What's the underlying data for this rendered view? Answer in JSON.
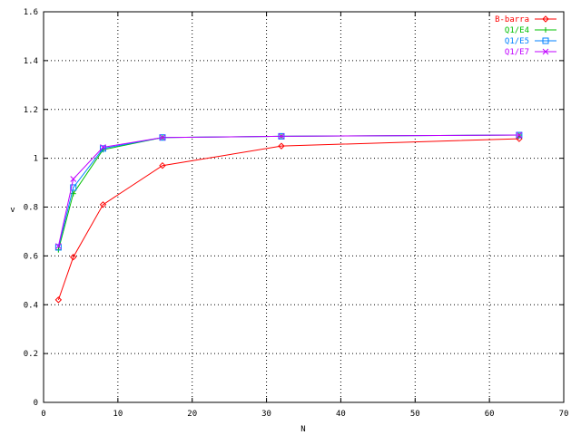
{
  "chart_data": {
    "type": "line",
    "title": "",
    "xlabel": "N",
    "ylabel": "v",
    "xlim": [
      0,
      70
    ],
    "ylim": [
      0,
      1.6
    ],
    "x_ticks": [
      "0",
      "10",
      "20",
      "30",
      "40",
      "50",
      "60",
      "70"
    ],
    "y_ticks": [
      "0",
      "0.2",
      "0.4",
      "0.6",
      "0.8",
      "1",
      "1.2",
      "1.4",
      "1.6"
    ],
    "grid": true,
    "legend_position": "top-right",
    "series": [
      {
        "name": "B-barra",
        "color": "#ff0000",
        "marker": "diamond",
        "x": [
          2,
          4,
          8,
          16,
          32,
          64
        ],
        "y": [
          0.42,
          0.595,
          0.81,
          0.97,
          1.05,
          1.08
        ]
      },
      {
        "name": "Q1/E4",
        "color": "#00c000",
        "marker": "plus",
        "x": [
          2,
          4,
          8,
          16,
          32,
          64
        ],
        "y": [
          0.625,
          0.855,
          1.035,
          1.085,
          1.09,
          1.095
        ]
      },
      {
        "name": "Q1/E5",
        "color": "#0080ff",
        "marker": "square",
        "x": [
          2,
          4,
          8,
          16,
          32,
          64
        ],
        "y": [
          0.635,
          0.88,
          1.04,
          1.085,
          1.09,
          1.095
        ]
      },
      {
        "name": "Q1/E7",
        "color": "#c000ff",
        "marker": "x",
        "x": [
          2,
          4,
          8,
          16,
          32,
          64
        ],
        "y": [
          0.64,
          0.915,
          1.045,
          1.085,
          1.09,
          1.095
        ]
      }
    ]
  }
}
